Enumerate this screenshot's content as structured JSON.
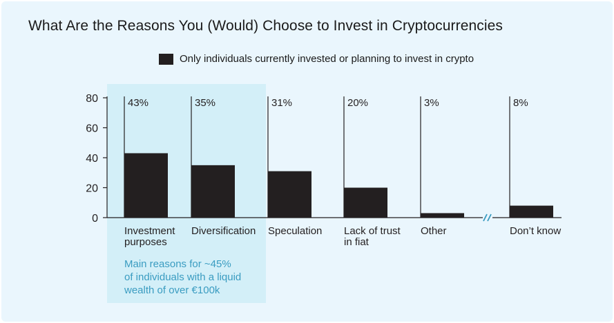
{
  "chart_data": {
    "type": "bar",
    "title": "What Are the Reasons You (Would) Choose to Invest in Cryptocurrencies",
    "legend": "Only individuals currently invested or planning to invest in crypto",
    "legend_position": "top",
    "categories": [
      "Investment purposes",
      "Diversification",
      "Speculation",
      "Lack of trust in fiat",
      "Other",
      "Don't know"
    ],
    "category_lines": [
      [
        "Investment",
        "purposes"
      ],
      [
        "Diversification"
      ],
      [
        "Speculation"
      ],
      [
        "Lack of trust",
        "in fiat"
      ],
      [
        "Other"
      ],
      [
        "Don’t know"
      ]
    ],
    "values": [
      43,
      35,
      31,
      20,
      3,
      8
    ],
    "value_labels": [
      "43%",
      "35%",
      "31%",
      "20%",
      "3%",
      "8%"
    ],
    "y_ticks": [
      0,
      20,
      40,
      60,
      80
    ],
    "ylim": [
      0,
      80
    ],
    "grid": false,
    "axis_break_before_index": 5,
    "highlight_indices": [
      0,
      1
    ],
    "annotation": "Main reasons for ~45%\nof individuals with a liquid\nwealth of over €100k",
    "colors": {
      "bar": "#231f20",
      "highlight": "#d3eff8",
      "annotation": "#3a9cc1",
      "axis_break": "#3a9cc1",
      "background": "#eaf6fd"
    }
  }
}
